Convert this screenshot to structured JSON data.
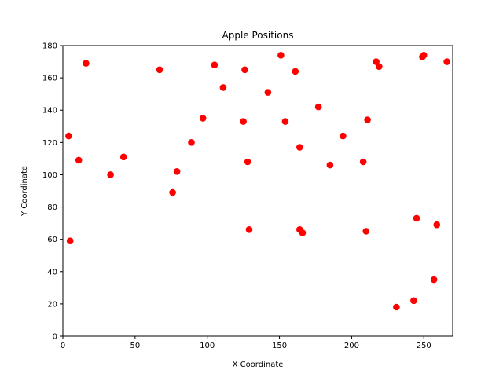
{
  "chart_data": {
    "type": "scatter",
    "title": "Apple Positions",
    "xlabel": "X Coordinate",
    "ylabel": "Y Coordinate",
    "xlim": [
      0,
      270
    ],
    "ylim": [
      0,
      180
    ],
    "xticks": [
      0,
      50,
      100,
      150,
      200,
      250
    ],
    "yticks": [
      0,
      20,
      40,
      60,
      80,
      100,
      120,
      140,
      160,
      180
    ],
    "grid": false,
    "marker_color": "#ff0000",
    "series": [
      {
        "points": [
          [
            4,
            124
          ],
          [
            5,
            59
          ],
          [
            11,
            109
          ],
          [
            16,
            169
          ],
          [
            33,
            100
          ],
          [
            42,
            111
          ],
          [
            67,
            165
          ],
          [
            76,
            89
          ],
          [
            79,
            102
          ],
          [
            89,
            120
          ],
          [
            97,
            135
          ],
          [
            105,
            168
          ],
          [
            111,
            154
          ],
          [
            125,
            133
          ],
          [
            126,
            165
          ],
          [
            128,
            108
          ],
          [
            129,
            66
          ],
          [
            142,
            151
          ],
          [
            151,
            174
          ],
          [
            154,
            133
          ],
          [
            161,
            164
          ],
          [
            164,
            66
          ],
          [
            164,
            117
          ],
          [
            166,
            64
          ],
          [
            177,
            142
          ],
          [
            185,
            106
          ],
          [
            194,
            124
          ],
          [
            208,
            108
          ],
          [
            210,
            65
          ],
          [
            211,
            134
          ],
          [
            217,
            170
          ],
          [
            219,
            167
          ],
          [
            231,
            18
          ],
          [
            243,
            22
          ],
          [
            245,
            73
          ],
          [
            249,
            173
          ],
          [
            250,
            174
          ],
          [
            257,
            35
          ],
          [
            259,
            69
          ],
          [
            266,
            170
          ]
        ]
      }
    ]
  }
}
